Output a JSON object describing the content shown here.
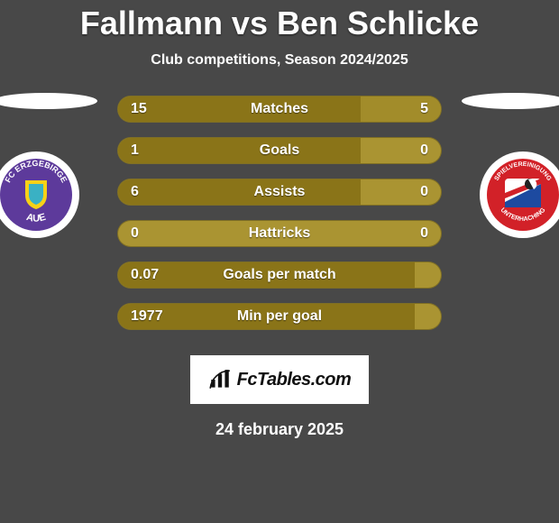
{
  "title": "Fallmann vs Ben Schlicke",
  "subtitle": "Club competitions, Season 2024/2025",
  "date": "24 february 2025",
  "fctables_text": "FcTables.com",
  "background_color": "#484848",
  "row_bg_color": "#aa9432",
  "row_bar_left_color": "#8a7418",
  "row_bar_right_color": "#a28c2a",
  "ellipse_color": "#ffffff",
  "team_left": {
    "name": "FC Erzgebirge Aue",
    "badge_ring": "#ffffff",
    "badge_bg": "#5d3a9b",
    "badge_accent": "#f7d117"
  },
  "team_right": {
    "name": "SpVgg Unterhaching",
    "badge_ring": "#ffffff",
    "badge_bg": "#d22128",
    "badge_accent": "#1d4aa0"
  },
  "stats": [
    {
      "label": "Matches",
      "left_val": "15",
      "right_val": "5",
      "left_pct": 75,
      "right_pct": 25
    },
    {
      "label": "Goals",
      "left_val": "1",
      "right_val": "0",
      "left_pct": 75,
      "right_pct": 0
    },
    {
      "label": "Assists",
      "left_val": "6",
      "right_val": "0",
      "left_pct": 75,
      "right_pct": 0
    },
    {
      "label": "Hattricks",
      "left_val": "0",
      "right_val": "0",
      "left_pct": 0,
      "right_pct": 0
    },
    {
      "label": "Goals per match",
      "left_val": "0.07",
      "right_val": "",
      "left_pct": 92,
      "right_pct": 0
    },
    {
      "label": "Min per goal",
      "left_val": "1977",
      "right_val": "",
      "left_pct": 92,
      "right_pct": 0
    }
  ]
}
